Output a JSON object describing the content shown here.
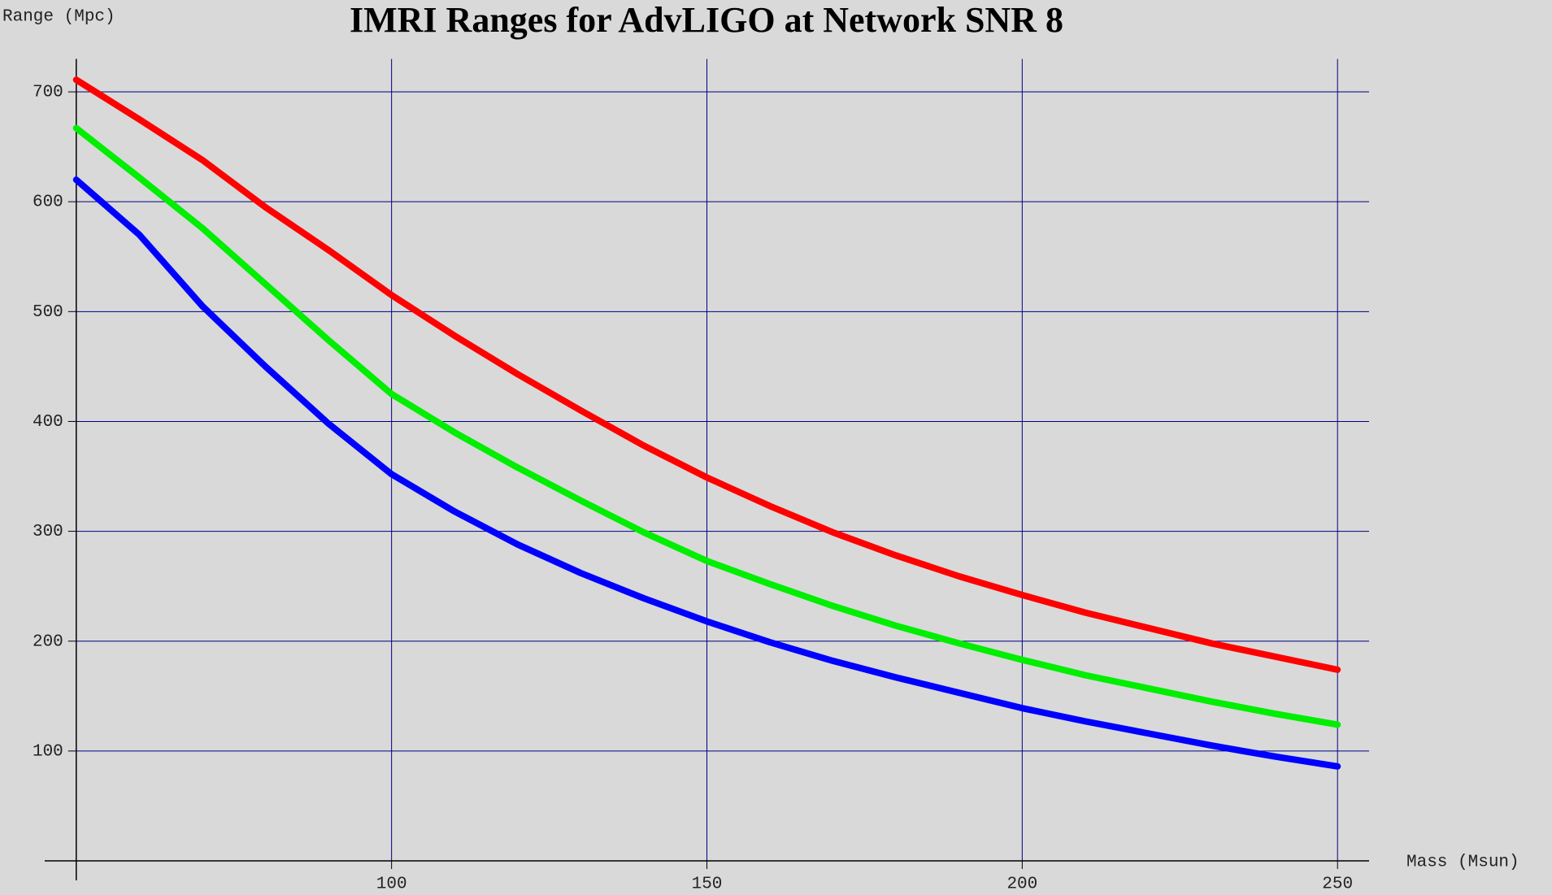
{
  "chart_data": {
    "type": "line",
    "title": "IMRI Ranges for AdvLIGO at Network SNR 8",
    "y_label": "Range (Mpc)",
    "x_label": "Mass (Msun)",
    "x": [
      50,
      60,
      70,
      80,
      90,
      100,
      110,
      120,
      130,
      140,
      150,
      160,
      170,
      180,
      190,
      200,
      210,
      220,
      230,
      240,
      250
    ],
    "series": [
      {
        "color": "#ff0000",
        "values": [
          711,
          675,
          638,
          595,
          556,
          515,
          478,
          443,
          410,
          378,
          349,
          323,
          299,
          278,
          259,
          242,
          226,
          212,
          198,
          186,
          174
        ]
      },
      {
        "color": "#00ee00",
        "values": [
          667,
          622,
          576,
          525,
          474,
          425,
          390,
          358,
          328,
          299,
          273,
          252,
          232,
          214,
          198,
          183,
          169,
          157,
          145,
          134,
          124
        ]
      },
      {
        "color": "#0000ff",
        "values": [
          620,
          570,
          505,
          450,
          398,
          352,
          318,
          288,
          262,
          239,
          218,
          199,
          182,
          167,
          153,
          139,
          127,
          116,
          105,
          95,
          86
        ]
      }
    ],
    "xlim": [
      45,
      255
    ],
    "ylim": [
      0,
      730
    ],
    "xticks": [
      100,
      150,
      200,
      250
    ],
    "yticks": [
      100,
      200,
      300,
      400,
      500,
      600,
      700
    ],
    "grid": true
  }
}
